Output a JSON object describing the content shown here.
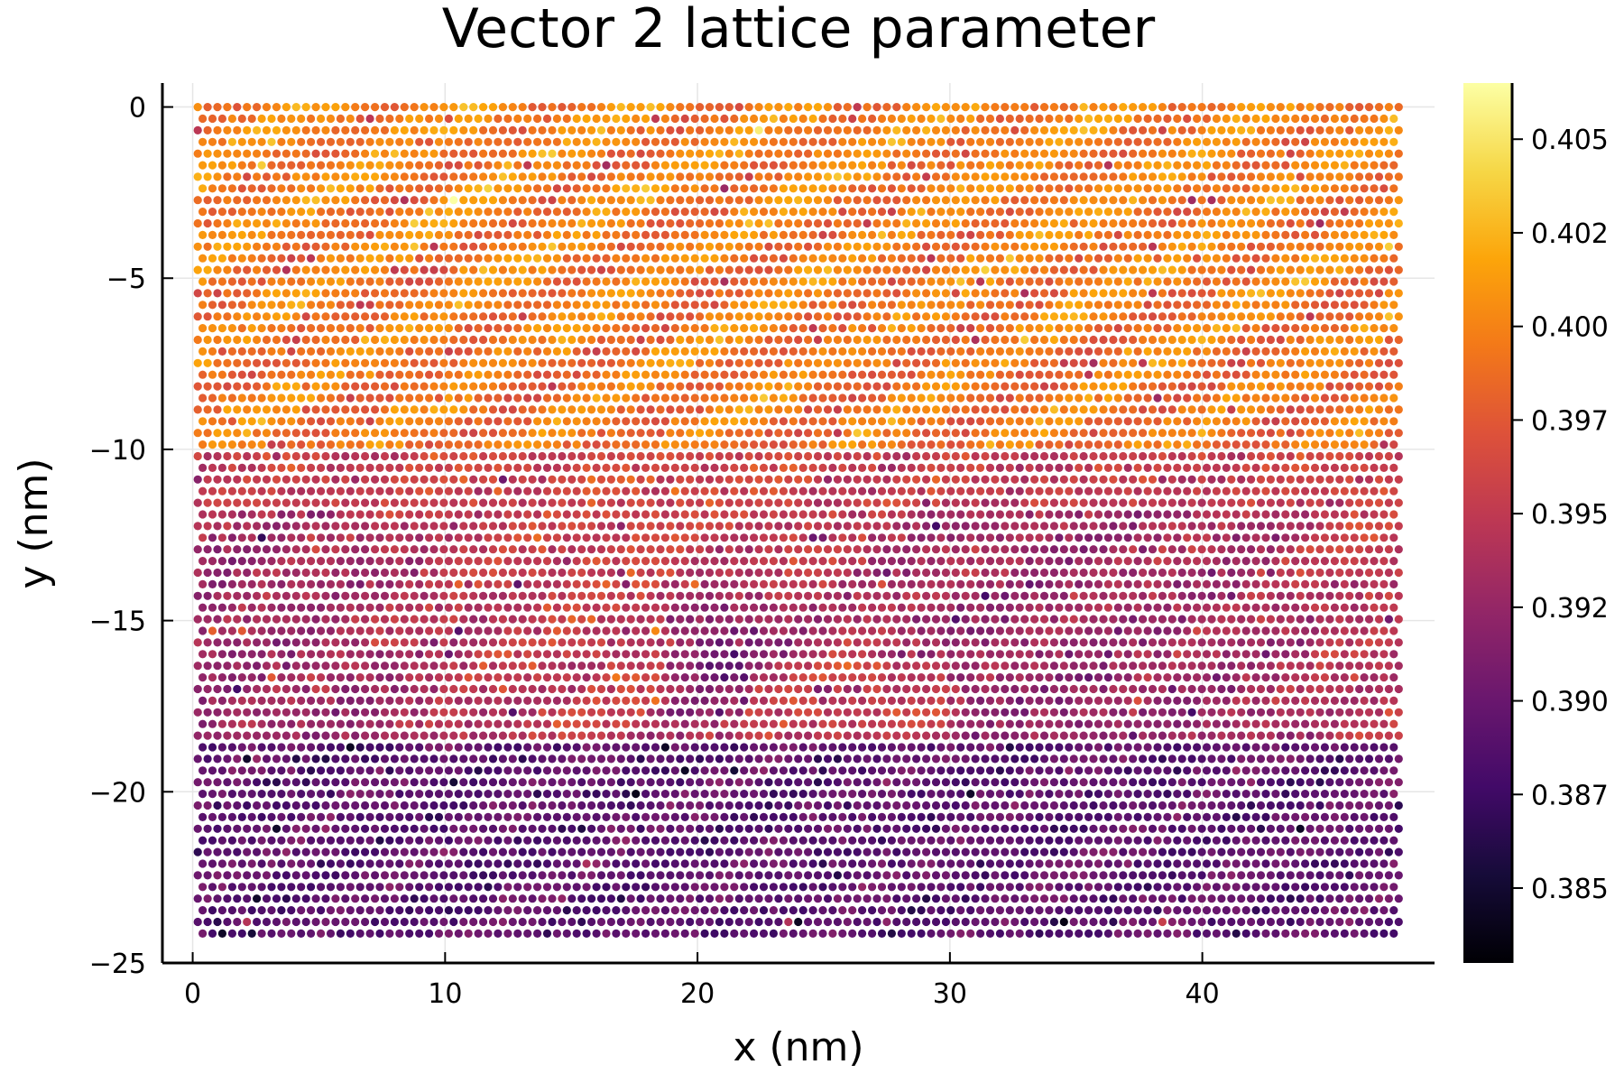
{
  "chart_data": {
    "type": "scatter",
    "title": "Vector 2 lattice parameter",
    "xlabel": "x (nm)",
    "ylabel": "y (nm)",
    "xlim": [
      -1.2,
      49.2
    ],
    "ylim": [
      -25,
      0.7
    ],
    "xticks": [
      0,
      10,
      20,
      30,
      40
    ],
    "xtick_labels": [
      "0",
      "10",
      "20",
      "30",
      "40"
    ],
    "yticks": [
      0,
      -5,
      -10,
      -15,
      -20,
      -25
    ],
    "ytick_labels": [
      "0",
      "−5",
      "−10",
      "−15",
      "−20",
      "−25"
    ],
    "grid": true,
    "legend": "none",
    "colormap": "inferno",
    "colorbar": {
      "range": [
        0.383,
        0.4065
      ],
      "ticks": [
        0.385,
        0.3875,
        0.39,
        0.3925,
        0.395,
        0.3975,
        0.4,
        0.4025,
        0.405
      ],
      "tick_labels": [
        "0.385",
        "0.387",
        "0.390",
        "0.392",
        "0.395",
        "0.397",
        "0.400",
        "0.402",
        "0.405"
      ]
    },
    "data_extent": {
      "x": [
        0.2,
        47.8
      ],
      "y": [
        -24.3,
        0
      ]
    },
    "value_regions": [
      {
        "region": "top band (y 0 to -10)",
        "typical_value": 0.3995,
        "feature": "diagonal stripes rising to the right"
      },
      {
        "region": "middle band (y -10 to -18.5)",
        "typical_value": 0.3955
      },
      {
        "region": "bottom band (y -18.5 to -24.3)",
        "typical_value": 0.3895
      },
      {
        "region": "low spot near x 21, y -16",
        "typical_value": 0.389
      }
    ]
  }
}
